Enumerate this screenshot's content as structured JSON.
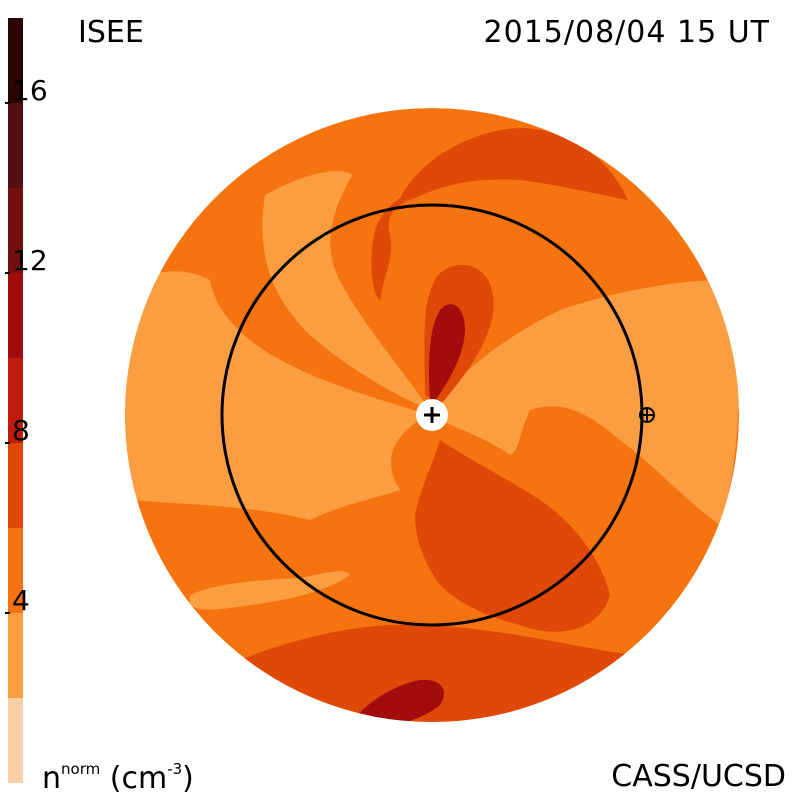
{
  "header": {
    "source": "ISEE",
    "datetime": "2015/08/04 15 UT"
  },
  "footer": {
    "unit_symbol": "n",
    "unit_superscript": "norm",
    "unit_text": "(cm",
    "unit_exponent": "-3",
    "unit_close": ")",
    "credit": "CASS/UCSD"
  },
  "colorbar": {
    "segments": [
      {
        "from": 0,
        "to": 2,
        "color": "#f9cfa6"
      },
      {
        "from": 2,
        "to": 4,
        "color": "#fb9e41"
      },
      {
        "from": 4,
        "to": 6,
        "color": "#f6740f"
      },
      {
        "from": 6,
        "to": 8,
        "color": "#e04808"
      },
      {
        "from": 8,
        "to": 10,
        "color": "#c01b0c"
      },
      {
        "from": 10,
        "to": 12,
        "color": "#a30c0c"
      },
      {
        "from": 12,
        "to": 14,
        "color": "#751010"
      },
      {
        "from": 14,
        "to": 16,
        "color": "#531010"
      },
      {
        "from": 16,
        "to": 18,
        "color": "#2c0505"
      }
    ],
    "ticks": [
      {
        "value": 4,
        "label": "4"
      },
      {
        "value": 8,
        "label": "8"
      },
      {
        "value": 12,
        "label": "12"
      },
      {
        "value": 16,
        "label": "16"
      }
    ],
    "range": [
      0,
      18
    ]
  },
  "map": {
    "levels": {
      "light": "#fb9e41",
      "medium": "#f6740f",
      "dark": "#e04808",
      "darker": "#c01b0c",
      "deep": "#a30c0c"
    },
    "symbols": {
      "sun": "sun-plus-marker",
      "earth": "earth-crossed-circle"
    }
  }
}
